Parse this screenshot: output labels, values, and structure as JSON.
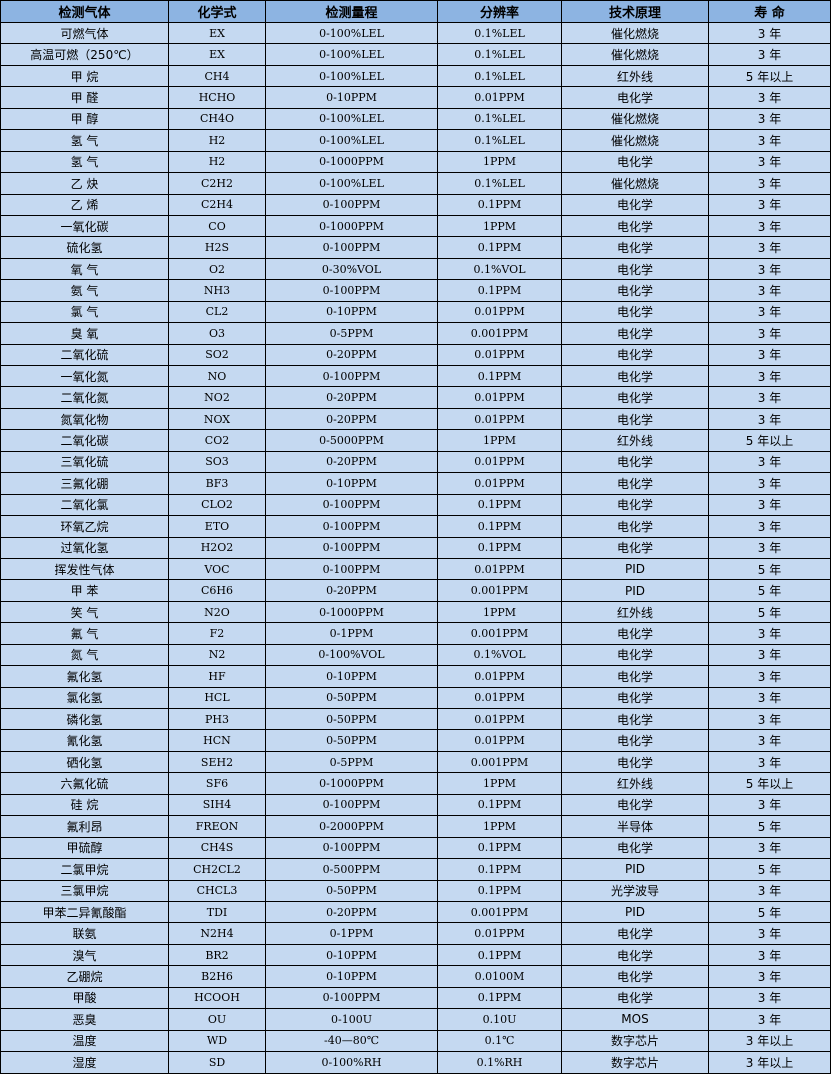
{
  "headers": [
    "检测气体",
    "化学式",
    "检测量程",
    "分辨率",
    "技术原理",
    "寿 命"
  ],
  "rows": [
    [
      "可燃气体",
      "EX",
      "0-100%LEL",
      "0.1%LEL",
      "催化燃烧",
      "3 年"
    ],
    [
      "高温可燃（250℃）",
      "EX",
      "0-100%LEL",
      "0.1%LEL",
      "催化燃烧",
      "3 年"
    ],
    [
      "甲 烷",
      "CH4",
      "0-100%LEL",
      "0.1%LEL",
      "红外线",
      "5 年以上"
    ],
    [
      "甲 醛",
      "HCHO",
      "0-10PPM",
      "0.01PPM",
      "电化学",
      "3 年"
    ],
    [
      "甲 醇",
      "CH4O",
      "0-100%LEL",
      "0.1%LEL",
      "催化燃烧",
      "3 年"
    ],
    [
      "氢 气",
      "H2",
      "0-100%LEL",
      "0.1%LEL",
      "催化燃烧",
      "3 年"
    ],
    [
      "氢 气",
      "H2",
      "0-1000PPM",
      "1PPM",
      "电化学",
      "3 年"
    ],
    [
      "乙 炔",
      "C2H2",
      "0-100%LEL",
      "0.1%LEL",
      "催化燃烧",
      "3 年"
    ],
    [
      "乙 烯",
      "C2H4",
      "0-100PPM",
      "0.1PPM",
      "电化学",
      "3 年"
    ],
    [
      "一氧化碳",
      "CO",
      "0-1000PPM",
      "1PPM",
      "电化学",
      "3 年"
    ],
    [
      "硫化氢",
      "H2S",
      "0-100PPM",
      "0.1PPM",
      "电化学",
      "3 年"
    ],
    [
      "氧 气",
      "O2",
      "0-30%VOL",
      "0.1%VOL",
      "电化学",
      "3 年"
    ],
    [
      "氨 气",
      "NH3",
      "0-100PPM",
      "0.1PPM",
      "电化学",
      "3 年"
    ],
    [
      "氯 气",
      "CL2",
      "0-10PPM",
      "0.01PPM",
      "电化学",
      "3 年"
    ],
    [
      "臭 氧",
      "O3",
      "0-5PPM",
      "0.001PPM",
      "电化学",
      "3 年"
    ],
    [
      "二氧化硫",
      "SO2",
      "0-20PPM",
      "0.01PPM",
      "电化学",
      "3 年"
    ],
    [
      "一氧化氮",
      "NO",
      "0-100PPM",
      "0.1PPM",
      "电化学",
      "3 年"
    ],
    [
      "二氧化氮",
      "NO2",
      "0-20PPM",
      "0.01PPM",
      "电化学",
      "3 年"
    ],
    [
      "氮氧化物",
      "NOX",
      "0-20PPM",
      "0.01PPM",
      "电化学",
      "3 年"
    ],
    [
      "二氧化碳",
      "CO2",
      "0-5000PPM",
      "1PPM",
      "红外线",
      "5 年以上"
    ],
    [
      "三氧化硫",
      "SO3",
      "0-20PPM",
      "0.01PPM",
      "电化学",
      "3 年"
    ],
    [
      "三氟化硼",
      "BF3",
      "0-10PPM",
      "0.01PPM",
      "电化学",
      "3 年"
    ],
    [
      "二氧化氯",
      "CLO2",
      "0-100PPM",
      "0.1PPM",
      "电化学",
      "3 年"
    ],
    [
      "环氧乙烷",
      "ETO",
      "0-100PPM",
      "0.1PPM",
      "电化学",
      "3 年"
    ],
    [
      "过氧化氢",
      "H2O2",
      "0-100PPM",
      "0.1PPM",
      "电化学",
      "3 年"
    ],
    [
      "挥发性气体",
      "VOC",
      "0-100PPM",
      "0.01PPM",
      "PID",
      "5 年"
    ],
    [
      "甲 苯",
      "C6H6",
      "0-20PPM",
      "0.001PPM",
      "PID",
      "5 年"
    ],
    [
      "笑 气",
      "N2O",
      "0-1000PPM",
      "1PPM",
      "红外线",
      "5 年"
    ],
    [
      "氟 气",
      "F2",
      "0-1PPM",
      "0.001PPM",
      "电化学",
      "3 年"
    ],
    [
      "氮 气",
      "N2",
      "0-100%VOL",
      "0.1%VOL",
      "电化学",
      "3 年"
    ],
    [
      "氟化氢",
      "HF",
      "0-10PPM",
      "0.01PPM",
      "电化学",
      "3 年"
    ],
    [
      "氯化氢",
      "HCL",
      "0-50PPM",
      "0.01PPM",
      "电化学",
      "3 年"
    ],
    [
      "磷化氢",
      "PH3",
      "0-50PPM",
      "0.01PPM",
      "电化学",
      "3 年"
    ],
    [
      "氰化氢",
      "HCN",
      "0-50PPM",
      "0.01PPM",
      "电化学",
      "3 年"
    ],
    [
      "硒化氢",
      "SEH2",
      "0-5PPM",
      "0.001PPM",
      "电化学",
      "3 年"
    ],
    [
      "六氟化硫",
      "SF6",
      "0-1000PPM",
      "1PPM",
      "红外线",
      "5 年以上"
    ],
    [
      "硅 烷",
      "SIH4",
      "0-100PPM",
      "0.1PPM",
      "电化学",
      "3 年"
    ],
    [
      "氟利昂",
      "FREON",
      "0-2000PPM",
      "1PPM",
      "半导体",
      "5 年"
    ],
    [
      "甲硫醇",
      "CH4S",
      "0-100PPM",
      "0.1PPM",
      "电化学",
      "3 年"
    ],
    [
      "二氯甲烷",
      "CH2CL2",
      "0-500PPM",
      "0.1PPM",
      "PID",
      "5 年"
    ],
    [
      "三氯甲烷",
      "CHCL3",
      "0-50PPM",
      "0.1PPM",
      "光学波导",
      "3 年"
    ],
    [
      "甲苯二异氰酸酯",
      "TDI",
      "0-20PPM",
      "0.001PPM",
      "PID",
      "5 年"
    ],
    [
      "联氨",
      "N2H4",
      "0-1PPM",
      "0.01PPM",
      "电化学",
      "3 年"
    ],
    [
      "溴气",
      "BR2",
      "0-10PPM",
      "0.1PPM",
      "电化学",
      "3 年"
    ],
    [
      "乙硼烷",
      "B2H6",
      "0-10PPM",
      "0.0100M",
      "电化学",
      "3 年"
    ],
    [
      "甲酸",
      "HCOOH",
      "0-100PPM",
      "0.1PPM",
      "电化学",
      "3 年"
    ],
    [
      "恶臭",
      "OU",
      "0-100U",
      "0.10U",
      "MOS",
      "3 年"
    ],
    [
      "温度",
      "WD",
      "-40—80℃",
      "0.1℃",
      "数字芯片",
      "3 年以上"
    ],
    [
      "湿度",
      "SD",
      "0-100%RH",
      "0.1%RH",
      "数字芯片",
      "3 年以上"
    ]
  ]
}
